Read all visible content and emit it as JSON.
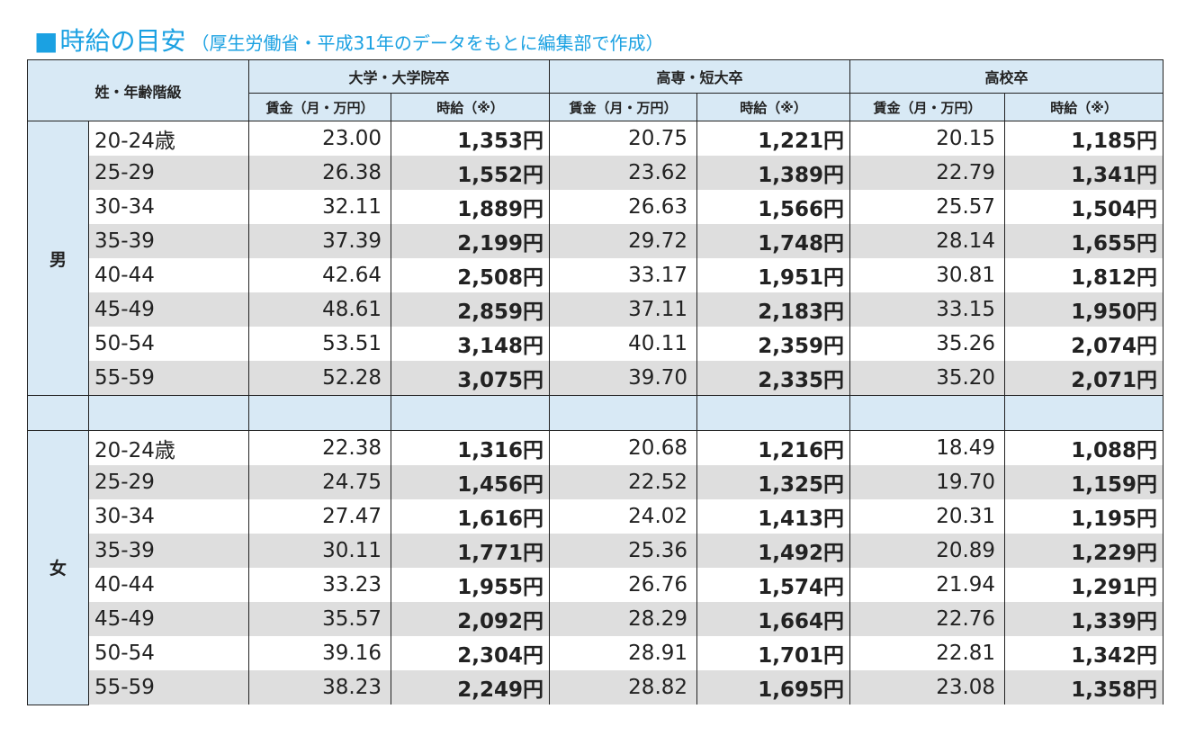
{
  "title": {
    "square": "■",
    "main": "時給の目安",
    "sub": "（厚生労働省・平成31年のデータをもとに編集部で作成）"
  },
  "table": {
    "corner": "姓・年齢階級",
    "groups": [
      "大学・大学院卒",
      "高専・短大卒",
      "高校卒"
    ],
    "sub_headers": [
      "賃金（月・万円）",
      "時給（※）",
      "賃金（月・万円）",
      "時給（※）",
      "賃金（月・万円）",
      "時給（※）"
    ],
    "sections": [
      {
        "label": "男",
        "rows": [
          {
            "age": "20-24歳",
            "cells": [
              "23.00",
              "1,353円",
              "20.75",
              "1,221円",
              "20.15",
              "1,185円"
            ]
          },
          {
            "age": "25-29",
            "cells": [
              "26.38",
              "1,552円",
              "23.62",
              "1,389円",
              "22.79",
              "1,341円"
            ]
          },
          {
            "age": "30-34",
            "cells": [
              "32.11",
              "1,889円",
              "26.63",
              "1,566円",
              "25.57",
              "1,504円"
            ]
          },
          {
            "age": "35-39",
            "cells": [
              "37.39",
              "2,199円",
              "29.72",
              "1,748円",
              "28.14",
              "1,655円"
            ]
          },
          {
            "age": "40-44",
            "cells": [
              "42.64",
              "2,508円",
              "33.17",
              "1,951円",
              "30.81",
              "1,812円"
            ]
          },
          {
            "age": "45-49",
            "cells": [
              "48.61",
              "2,859円",
              "37.11",
              "2,183円",
              "33.15",
              "1,950円"
            ]
          },
          {
            "age": "50-54",
            "cells": [
              "53.51",
              "3,148円",
              "40.11",
              "2,359円",
              "35.26",
              "2,074円"
            ]
          },
          {
            "age": "55-59",
            "cells": [
              "52.28",
              "3,075円",
              "39.70",
              "2,335円",
              "35.20",
              "2,071円"
            ]
          }
        ]
      },
      {
        "label": "女",
        "rows": [
          {
            "age": "20-24歳",
            "cells": [
              "22.38",
              "1,316円",
              "20.68",
              "1,216円",
              "18.49",
              "1,088円"
            ]
          },
          {
            "age": "25-29",
            "cells": [
              "24.75",
              "1,456円",
              "22.52",
              "1,325円",
              "19.70",
              "1,159円"
            ]
          },
          {
            "age": "30-34",
            "cells": [
              "27.47",
              "1,616円",
              "24.02",
              "1,413円",
              "20.31",
              "1,195円"
            ]
          },
          {
            "age": "35-39",
            "cells": [
              "30.11",
              "1,771円",
              "25.36",
              "1,492円",
              "20.89",
              "1,229円"
            ]
          },
          {
            "age": "40-44",
            "cells": [
              "33.23",
              "1,955円",
              "26.76",
              "1,574円",
              "21.94",
              "1,291円"
            ]
          },
          {
            "age": "45-49",
            "cells": [
              "35.57",
              "2,092円",
              "28.29",
              "1,664円",
              "22.76",
              "1,339円"
            ]
          },
          {
            "age": "50-54",
            "cells": [
              "39.16",
              "2,304円",
              "28.91",
              "1,701円",
              "22.81",
              "1,342円"
            ]
          },
          {
            "age": "55-59",
            "cells": [
              "38.23",
              "2,249円",
              "28.82",
              "1,695円",
              "23.08",
              "1,358円"
            ]
          }
        ]
      }
    ]
  }
}
